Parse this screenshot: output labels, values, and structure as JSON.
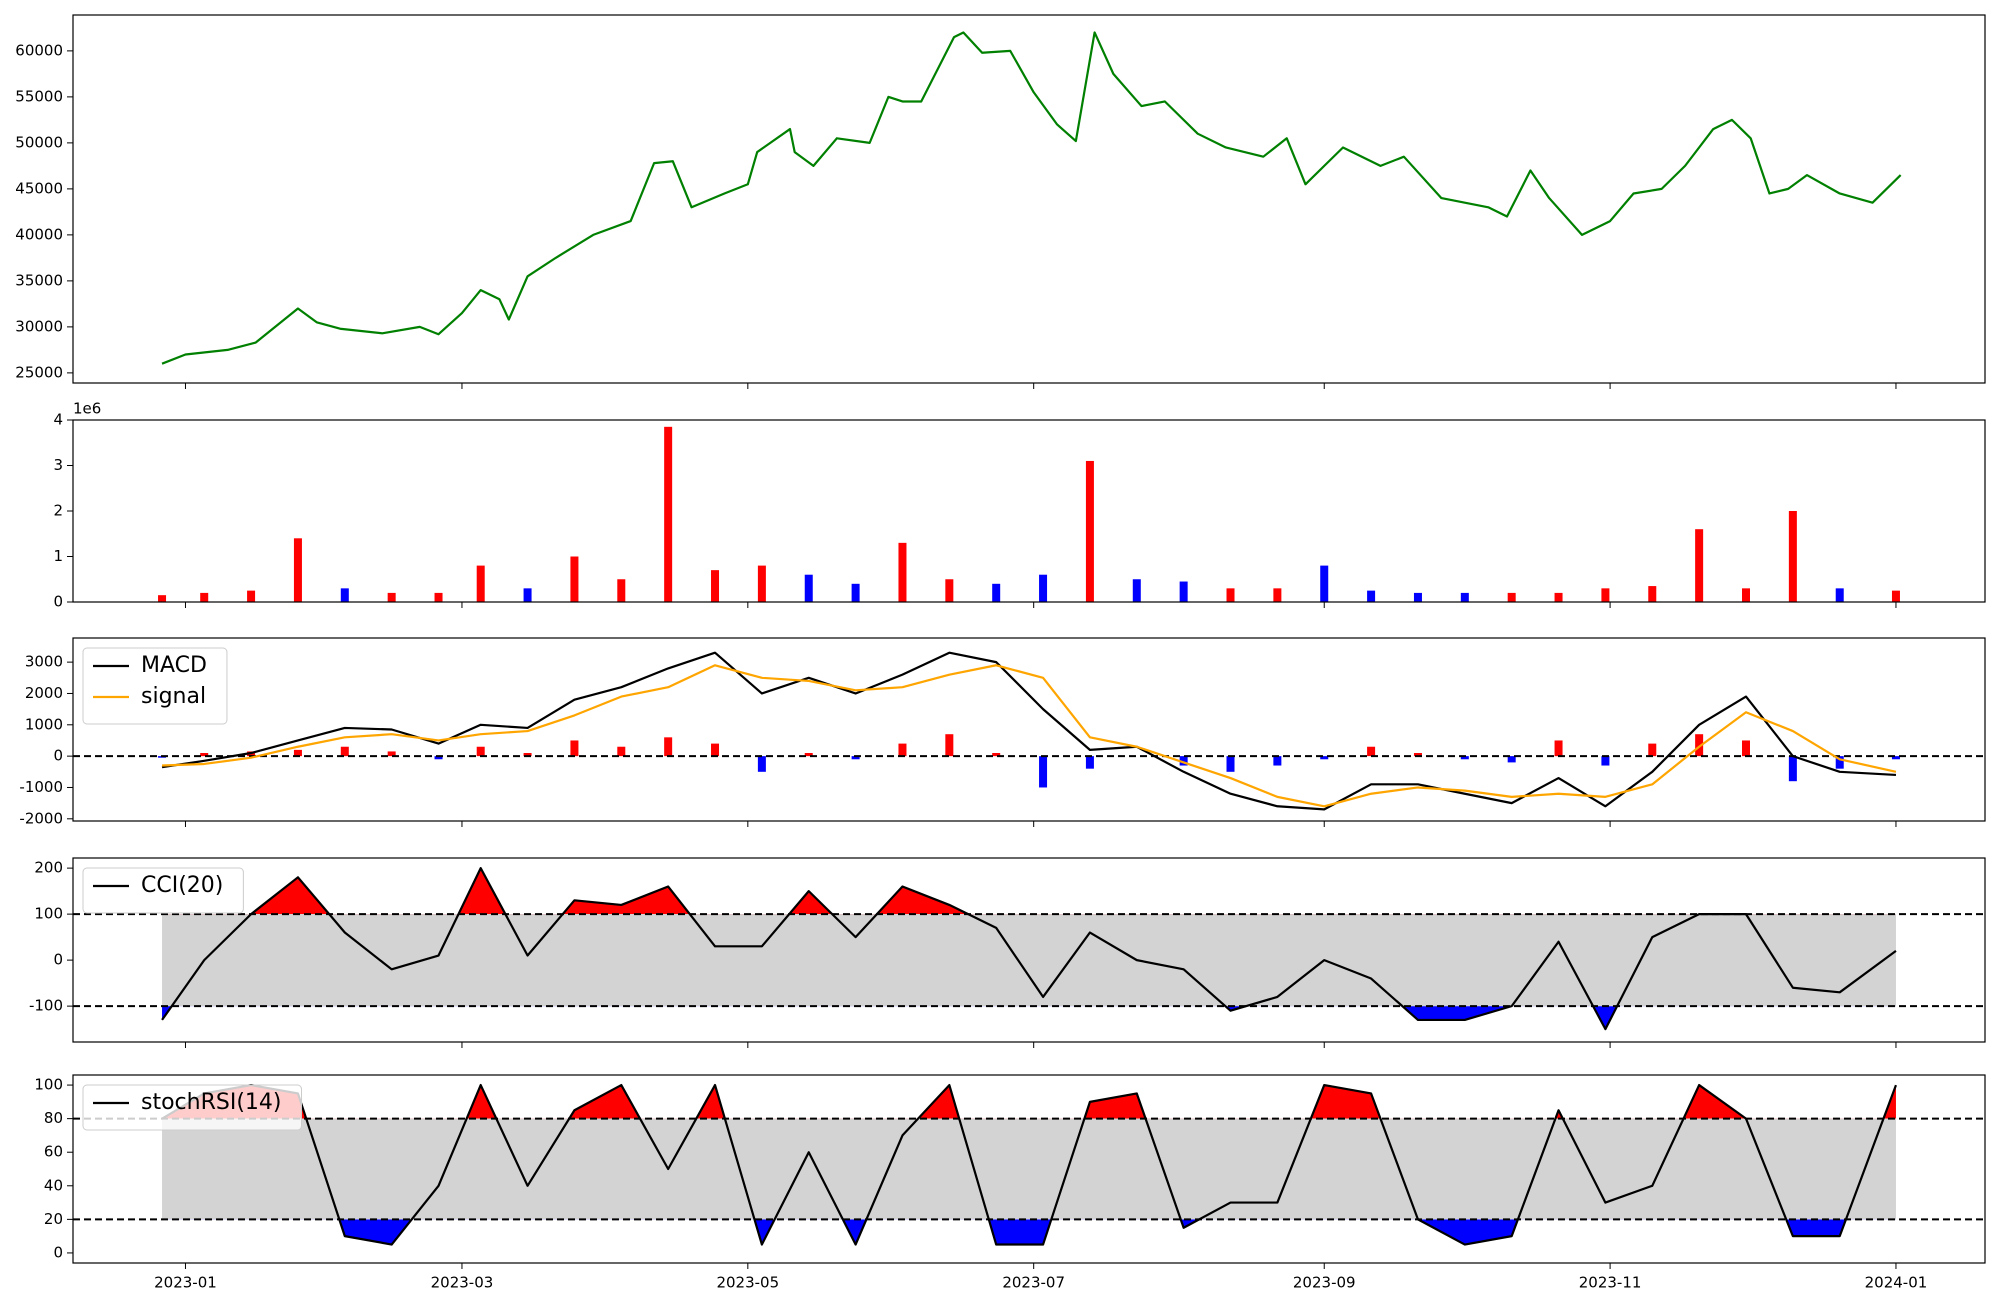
{
  "chart_data": [
    {
      "type": "line",
      "x": [
        "2022-12-27",
        "2023-01-01",
        "2023-01-10",
        "2023-01-16",
        "2023-01-25",
        "2023-01-29",
        "2023-02-03",
        "2023-02-12",
        "2023-02-20",
        "2023-02-24",
        "2023-03-01",
        "2023-03-05",
        "2023-03-09",
        "2023-03-11",
        "2023-03-15",
        "2023-03-21",
        "2023-03-29",
        "2023-04-06",
        "2023-04-11",
        "2023-04-15",
        "2023-04-19",
        "2023-04-26",
        "2023-05-01",
        "2023-05-03",
        "2023-05-10",
        "2023-05-11",
        "2023-05-15",
        "2023-05-20",
        "2023-05-27",
        "2023-05-31",
        "2023-06-03",
        "2023-06-07",
        "2023-06-14",
        "2023-06-16",
        "2023-06-20",
        "2023-06-26",
        "2023-07-01",
        "2023-07-06",
        "2023-07-10",
        "2023-07-14",
        "2023-07-18",
        "2023-07-24",
        "2023-07-29",
        "2023-08-05",
        "2023-08-11",
        "2023-08-19",
        "2023-08-24",
        "2023-08-28",
        "2023-09-01",
        "2023-09-05",
        "2023-09-13",
        "2023-09-18",
        "2023-09-26",
        "2023-10-06",
        "2023-10-10",
        "2023-10-15",
        "2023-10-19",
        "2023-10-26",
        "2023-11-01",
        "2023-11-06",
        "2023-11-12",
        "2023-11-17",
        "2023-11-23",
        "2023-11-27",
        "2023-12-01",
        "2023-12-05",
        "2023-12-09",
        "2023-12-13",
        "2023-12-20",
        "2023-12-27",
        "2024-01-02"
      ],
      "series": [
        {
          "color": "green",
          "values": [
            26000,
            27000,
            27500,
            28300,
            32000,
            30500,
            29800,
            29300,
            30000,
            29200,
            31500,
            34000,
            33000,
            30800,
            35500,
            37500,
            40000,
            41500,
            47800,
            48000,
            43000,
            44500,
            45500,
            49000,
            51500,
            49000,
            47500,
            50500,
            50000,
            55000,
            54500,
            54500,
            61500,
            62000,
            59800,
            60000,
            55500,
            52000,
            50200,
            62000,
            57500,
            54000,
            54500,
            51000,
            49500,
            48500,
            50500,
            45500,
            47500,
            49500,
            47500,
            48500,
            44000,
            43000,
            42000,
            47000,
            44000,
            40000,
            41500,
            44500,
            45000,
            47500,
            51500,
            52500,
            50500,
            44500,
            45000,
            46500,
            44500,
            43500,
            46500
          ]
        }
      ],
      "xlim": [
        "2022-12-08",
        "2024-01-20"
      ],
      "ylim": [
        23900,
        63900
      ],
      "yticks": [
        25000,
        30000,
        35000,
        40000,
        45000,
        50000,
        55000,
        60000
      ]
    },
    {
      "type": "bar",
      "x": [
        "2022-12-27",
        "2023-01-05",
        "2023-01-15",
        "2023-01-25",
        "2023-02-04",
        "2023-02-14",
        "2023-02-24",
        "2023-03-05",
        "2023-03-15",
        "2023-03-25",
        "2023-04-04",
        "2023-04-14",
        "2023-04-24",
        "2023-05-04",
        "2023-05-14",
        "2023-05-24",
        "2023-06-03",
        "2023-06-13",
        "2023-06-23",
        "2023-07-03",
        "2023-07-13",
        "2023-07-23",
        "2023-08-02",
        "2023-08-12",
        "2023-08-22",
        "2023-09-01",
        "2023-09-11",
        "2023-09-21",
        "2023-10-01",
        "2023-10-11",
        "2023-10-21",
        "2023-10-31",
        "2023-11-10",
        "2023-11-20",
        "2023-11-30",
        "2023-12-10",
        "2023-12-20",
        "2024-01-01"
      ],
      "values": [
        0.15,
        0.2,
        0.25,
        1.4,
        0.3,
        0.2,
        0.2,
        0.8,
        0.3,
        1.0,
        0.5,
        3.85,
        0.7,
        0.8,
        0.6,
        0.4,
        1.3,
        0.5,
        0.4,
        0.6,
        3.1,
        0.5,
        0.45,
        0.3,
        0.3,
        0.8,
        0.25,
        0.2,
        0.2,
        0.2,
        0.2,
        0.3,
        0.35,
        1.6,
        0.3,
        2.0,
        0.3,
        0.25
      ],
      "colors": [
        "red",
        "red",
        "red",
        "red",
        "blue",
        "red",
        "red",
        "red",
        "blue",
        "red",
        "red",
        "red",
        "red",
        "red",
        "blue",
        "blue",
        "red",
        "red",
        "blue",
        "blue",
        "red",
        "blue",
        "blue",
        "red",
        "red",
        "blue",
        "blue",
        "blue",
        "blue",
        "red",
        "red",
        "red",
        "red",
        "red",
        "red",
        "red",
        "blue",
        "red"
      ],
      "y_offset_label": "1e6",
      "xlim": [
        "2022-12-08",
        "2024-01-20"
      ],
      "ylim": [
        0,
        4
      ],
      "yticks": [
        0,
        1,
        2,
        3,
        4
      ]
    },
    {
      "type": "line",
      "x": [
        "2022-12-27",
        "2023-01-05",
        "2023-01-15",
        "2023-01-25",
        "2023-02-04",
        "2023-02-14",
        "2023-02-24",
        "2023-03-05",
        "2023-03-15",
        "2023-03-25",
        "2023-04-04",
        "2023-04-14",
        "2023-04-24",
        "2023-05-04",
        "2023-05-14",
        "2023-05-24",
        "2023-06-03",
        "2023-06-13",
        "2023-06-23",
        "2023-07-03",
        "2023-07-13",
        "2023-07-23",
        "2023-08-02",
        "2023-08-12",
        "2023-08-22",
        "2023-09-01",
        "2023-09-11",
        "2023-09-21",
        "2023-10-01",
        "2023-10-11",
        "2023-10-21",
        "2023-10-31",
        "2023-11-10",
        "2023-11-20",
        "2023-11-30",
        "2023-12-10",
        "2023-12-20",
        "2024-01-01"
      ],
      "series": [
        {
          "name": "MACD",
          "color": "black",
          "values": [
            -350,
            -150,
            100,
            500,
            900,
            850,
            400,
            1000,
            900,
            1800,
            2200,
            2800,
            3300,
            2000,
            2500,
            2000,
            2600,
            3300,
            3000,
            1500,
            200,
            300,
            -500,
            -1200,
            -1600,
            -1700,
            -900,
            -900,
            -1200,
            -1500,
            -700,
            -1600,
            -500,
            1000,
            1900,
            0,
            -500,
            -600
          ]
        },
        {
          "name": "signal",
          "color": "orange",
          "values": [
            -300,
            -250,
            -50,
            300,
            600,
            700,
            500,
            700,
            800,
            1300,
            1900,
            2200,
            2900,
            2500,
            2400,
            2100,
            2200,
            2600,
            2900,
            2500,
            600,
            300,
            -200,
            -700,
            -1300,
            -1600,
            -1200,
            -1000,
            -1100,
            -1300,
            -1200,
            -1300,
            -900,
            300,
            1400,
            800,
            -100,
            -500
          ]
        }
      ],
      "histogram": {
        "values": [
          -50,
          100,
          150,
          200,
          300,
          150,
          -100,
          300,
          100,
          500,
          300,
          600,
          400,
          -500,
          100,
          -100,
          400,
          700,
          100,
          -1000,
          -400,
          0,
          -300,
          -500,
          -300,
          -100,
          300,
          100,
          -100,
          -200,
          500,
          -300,
          400,
          700,
          500,
          -800,
          -400,
          -100
        ],
        "positive_color": "red",
        "negative_color": "blue"
      },
      "reference_lines": [
        0
      ],
      "legend": "upper left",
      "xlim": [
        "2022-12-08",
        "2024-01-20"
      ],
      "ylim": [
        -2070,
        3770
      ],
      "yticks": [
        -2000,
        -1000,
        0,
        1000,
        2000,
        3000
      ]
    },
    {
      "type": "line",
      "x": [
        "2022-12-27",
        "2023-01-05",
        "2023-01-15",
        "2023-01-25",
        "2023-02-04",
        "2023-02-14",
        "2023-02-24",
        "2023-03-05",
        "2023-03-15",
        "2023-03-25",
        "2023-04-04",
        "2023-04-14",
        "2023-04-24",
        "2023-05-04",
        "2023-05-14",
        "2023-05-24",
        "2023-06-03",
        "2023-06-13",
        "2023-06-23",
        "2023-07-03",
        "2023-07-13",
        "2023-07-23",
        "2023-08-02",
        "2023-08-12",
        "2023-08-22",
        "2023-09-01",
        "2023-09-11",
        "2023-09-21",
        "2023-10-01",
        "2023-10-11",
        "2023-10-21",
        "2023-10-31",
        "2023-11-10",
        "2023-11-20",
        "2023-11-30",
        "2023-12-10",
        "2023-12-20",
        "2024-01-01"
      ],
      "series": [
        {
          "name": "CCI(20)",
          "color": "black",
          "values": [
            -130,
            0,
            100,
            180,
            60,
            -20,
            10,
            200,
            10,
            130,
            120,
            160,
            30,
            30,
            150,
            50,
            160,
            120,
            70,
            -80,
            60,
            0,
            -20,
            -110,
            -80,
            0,
            -40,
            -130,
            -130,
            -100,
            40,
            -150,
            50,
            100,
            100,
            -60,
            -70,
            20
          ]
        }
      ],
      "band": {
        "lower": -100,
        "upper": 100,
        "color": "lightgray",
        "above_color": "red",
        "below_color": "blue"
      },
      "legend": "upper left",
      "xlim": [
        "2022-12-08",
        "2024-01-20"
      ],
      "ylim": [
        -178,
        222
      ],
      "yticks": [
        -100,
        0,
        100,
        200
      ]
    },
    {
      "type": "line",
      "x": [
        "2022-12-27",
        "2023-01-05",
        "2023-01-15",
        "2023-01-25",
        "2023-02-04",
        "2023-02-14",
        "2023-02-24",
        "2023-03-05",
        "2023-03-15",
        "2023-03-25",
        "2023-04-04",
        "2023-04-14",
        "2023-04-24",
        "2023-05-04",
        "2023-05-14",
        "2023-05-24",
        "2023-06-03",
        "2023-06-13",
        "2023-06-23",
        "2023-07-03",
        "2023-07-13",
        "2023-07-23",
        "2023-08-02",
        "2023-08-12",
        "2023-08-22",
        "2023-09-01",
        "2023-09-11",
        "2023-09-21",
        "2023-10-01",
        "2023-10-11",
        "2023-10-21",
        "2023-10-31",
        "2023-11-10",
        "2023-11-20",
        "2023-11-30",
        "2023-12-10",
        "2023-12-20",
        "2024-01-01"
      ],
      "series": [
        {
          "name": "stochRSI(14)",
          "color": "black",
          "values": [
            80,
            95,
            100,
            95,
            10,
            5,
            40,
            100,
            40,
            85,
            100,
            50,
            100,
            5,
            60,
            5,
            70,
            100,
            5,
            5,
            90,
            95,
            15,
            30,
            30,
            100,
            95,
            20,
            5,
            10,
            85,
            30,
            40,
            100,
            80,
            10,
            10,
            100
          ]
        }
      ],
      "band": {
        "lower": 20,
        "upper": 80,
        "color": "lightgray",
        "above_color": "red",
        "below_color": "blue"
      },
      "legend": "upper left",
      "xlim": [
        "2022-12-08",
        "2024-01-20"
      ],
      "ylim": [
        -6,
        106
      ],
      "yticks": [
        0,
        20,
        40,
        60,
        80,
        100
      ],
      "xticks": [
        {
          "value": "2023-01-01",
          "label": "2023-01"
        },
        {
          "value": "2023-03-01",
          "label": "2023-03"
        },
        {
          "value": "2023-05-01",
          "label": "2023-05"
        },
        {
          "value": "2023-07-01",
          "label": "2023-07"
        },
        {
          "value": "2023-09-01",
          "label": "2023-09"
        },
        {
          "value": "2023-11-01",
          "label": "2023-11"
        },
        {
          "value": "2024-01-01",
          "label": "2024-01"
        }
      ]
    }
  ]
}
